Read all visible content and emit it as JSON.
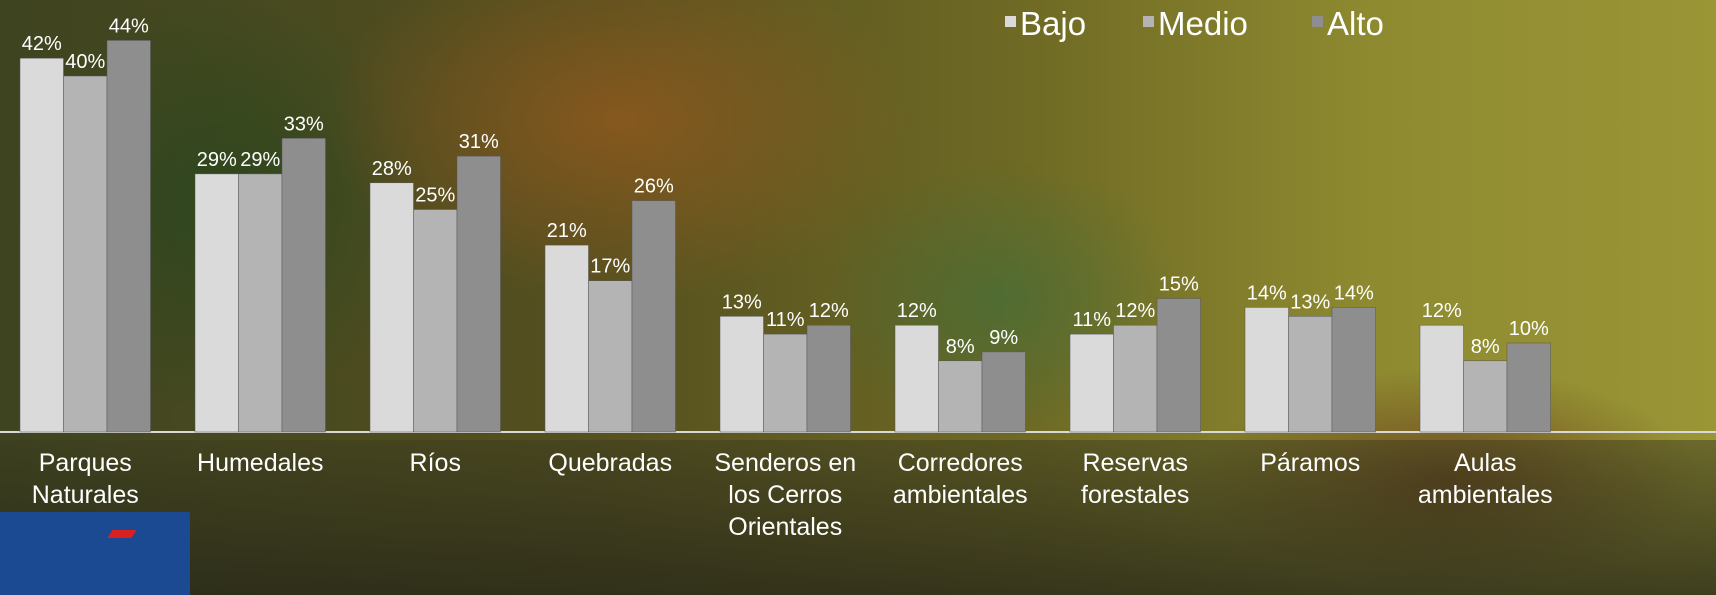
{
  "chart_data": {
    "type": "bar",
    "categories": [
      "Parques\nNaturales",
      "Humedales",
      "Ríos",
      "Quebradas",
      "Senderos en\nlos Cerros\nOrientales",
      "Corredores\nambientales",
      "Reservas\nforestales",
      "Páramos",
      "Aulas\nambientales"
    ],
    "series": [
      {
        "name": "Bajo",
        "color": "#dadada",
        "values": [
          42,
          29,
          28,
          21,
          13,
          12,
          11,
          14,
          12
        ],
        "value_labels": [
          "42%",
          "29%",
          "28%",
          "21%",
          "13%",
          "12%",
          "11%",
          "14%",
          "12%"
        ]
      },
      {
        "name": "Medio",
        "color": "#b4b4b4",
        "values": [
          40,
          29,
          25,
          17,
          11,
          8,
          12,
          13,
          8
        ],
        "value_labels": [
          "40%",
          "29%",
          "25%",
          "17%",
          "11%",
          "8%",
          "12%",
          "13%",
          "8%"
        ]
      },
      {
        "name": "Alto",
        "color": "#8e8e8e",
        "values": [
          44,
          33,
          31,
          26,
          12,
          9,
          15,
          14,
          10
        ],
        "value_labels": [
          "44%",
          "33%",
          "31%",
          "26%",
          "12%",
          "9%",
          "15%",
          "14%",
          "10%"
        ]
      }
    ]
  }
}
